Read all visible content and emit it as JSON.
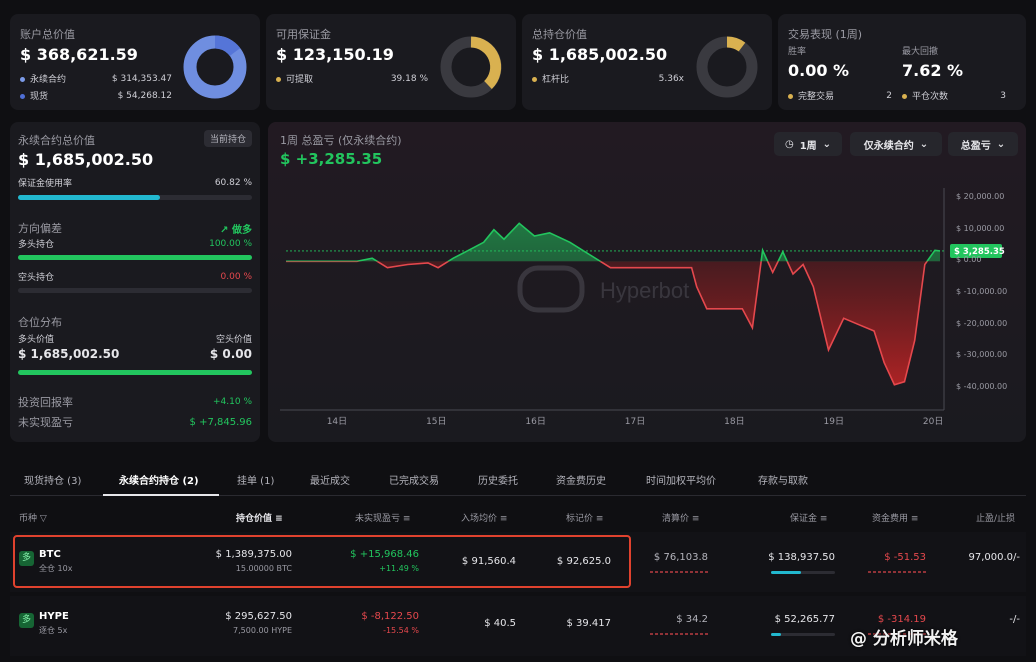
{
  "summary": {
    "account": {
      "title": "账户总价值",
      "value": "$ 368,621.59",
      "perp_label": "永续合约",
      "perp_value": "$ 314,353.47",
      "spot_label": "现货",
      "spot_value": "$ 54,268.12"
    },
    "margin": {
      "title": "可用保证金",
      "value": "$ 123,150.19",
      "avail_label": "可提取",
      "avail_pct": "39.18 %",
      "fill": 0.3918
    },
    "holdings": {
      "title": "总持仓价值",
      "value": "$ 1,685,002.50",
      "lev_label": "杠杆比",
      "lev_value": "5.36x"
    },
    "perf": {
      "title": "交易表现 (1周)",
      "win_label": "胜率",
      "win_value": "0.00 %",
      "dd_label": "最大回撤",
      "dd_value": "7.62 %",
      "done_label": "完整交易",
      "done_count": "2",
      "close_label": "平仓次数",
      "close_count": "3"
    }
  },
  "perp_panel": {
    "title": "永续合约总价值",
    "badge": "当前持仓",
    "value": "$ 1,685,002.50",
    "margin_label": "保证金使用率",
    "margin_pct": "60.82 %",
    "margin_fill": 0.6082,
    "bias_title": "方向偏差",
    "bias_value": "做多",
    "long_label": "多头持仓",
    "long_pct": "100.00 %",
    "long_fill": 1.0,
    "short_label": "空头持仓",
    "short_pct": "0.00 %",
    "short_fill": 0.0,
    "dist_title": "仓位分布",
    "long_val_label": "多头价值",
    "short_val_label": "空头价值",
    "long_val": "$ 1,685,002.50",
    "short_val": "$ 0.00",
    "roi_label": "投资回报率",
    "roi_value": "+4.10 %",
    "upnl_label": "未实现盈亏",
    "upnl_value": "$ +7,845.96"
  },
  "chart_panel": {
    "title": "1周 总盈亏 (仅永续合约)",
    "value": "$ +3,285.35",
    "btn_period": "1周",
    "btn_scope": "仅永续合约",
    "btn_metric": "总盈亏",
    "watermark": "Hyperbot",
    "current_tag": "$ 3,285.35"
  },
  "chart_data": {
    "type": "area",
    "x_ticks": [
      "14日",
      "15日",
      "16日",
      "17日",
      "18日",
      "19日",
      "20日"
    ],
    "y_ticks": [
      "$ 20,000.00",
      "$ 10,000.00",
      "$ 0.00",
      "$ -10,000.00",
      "$ -20,000.00",
      "$ -30,000.00",
      "$ -40,000.00"
    ],
    "ylim": [
      -40000,
      20000
    ],
    "x": [
      0,
      0.25,
      0.5,
      0.7,
      0.85,
      1.0,
      1.2,
      1.4,
      1.5,
      1.65,
      1.8,
      1.95,
      2.05,
      2.15,
      2.3,
      2.45,
      2.6,
      2.8,
      3.0,
      3.2,
      3.4,
      3.55,
      3.7,
      3.85,
      4.0,
      4.05,
      4.15,
      4.25,
      4.4,
      4.5,
      4.6,
      4.7,
      4.8,
      4.9,
      5.0,
      5.1,
      5.2,
      5.35,
      5.5,
      5.65,
      5.8,
      5.9,
      6.0,
      6.1,
      6.2,
      6.3,
      6.4,
      6.45
    ],
    "y": [
      0,
      0,
      0,
      0,
      1000,
      -2000,
      -1000,
      -500,
      -2000,
      1000,
      3500,
      6000,
      10000,
      7000,
      12000,
      8000,
      9000,
      6000,
      2000,
      -2000,
      -2000,
      -2000,
      -2000,
      -2000,
      -2000,
      -8000,
      -15000,
      -15000,
      -15000,
      -15000,
      -21000,
      3500,
      -3500,
      3000,
      -4000,
      -1000,
      -8000,
      -28000,
      -18000,
      -20000,
      -22000,
      -32000,
      -39000,
      -38000,
      -25000,
      -1000,
      3500,
      3285
    ],
    "x_scale": "days"
  },
  "tabs": [
    "现货持仓 (3)",
    "永续合约持仓 (2)",
    "挂单 (1)",
    "最近成交",
    "已完成交易",
    "历史委托",
    "资金费历史",
    "时间加权平均价",
    "存款与取款"
  ],
  "table": {
    "headers": [
      "币种",
      "持仓价值",
      "未实现盈亏",
      "入场均价",
      "标记价",
      "清算价",
      "保证金",
      "资金费用",
      "止盈/止损"
    ],
    "rows": [
      {
        "badge": "多",
        "coin": "BTC",
        "mode": "全仓 10x",
        "value": "$ 1,389,375.00",
        "size": "15.00000 BTC",
        "pnl": "$ +15,968.46",
        "pnl_pct": "+11.49 %",
        "entry": "$ 91,560.4",
        "mark": "$ 92,625.0",
        "liq": "$ 76,103.8",
        "margin": "$ 138,937.50",
        "funding": "$ -51.53",
        "tpsl": "97,000.0/-",
        "pnl_color": "#22c55e"
      },
      {
        "badge": "多",
        "coin": "HYPE",
        "mode": "逐仓 5x",
        "value": "$ 295,627.50",
        "size": "7,500.00 HYPE",
        "pnl": "$ -8,122.50",
        "pnl_pct": "-15.54 %",
        "entry": "$ 40.5",
        "mark": "$ 39.417",
        "liq": "$ 34.2",
        "margin": "$ 52,265.77",
        "funding": "$ -314.19",
        "tpsl": "-/-",
        "pnl_color": "#e5484d"
      }
    ]
  },
  "watermark_footer": "@ 分析师米格",
  "colors": {
    "green": "#22c55e",
    "red": "#e5484d",
    "blue": "#4f6fd6",
    "gold": "#d9b150",
    "cyan": "#22b8cf"
  }
}
